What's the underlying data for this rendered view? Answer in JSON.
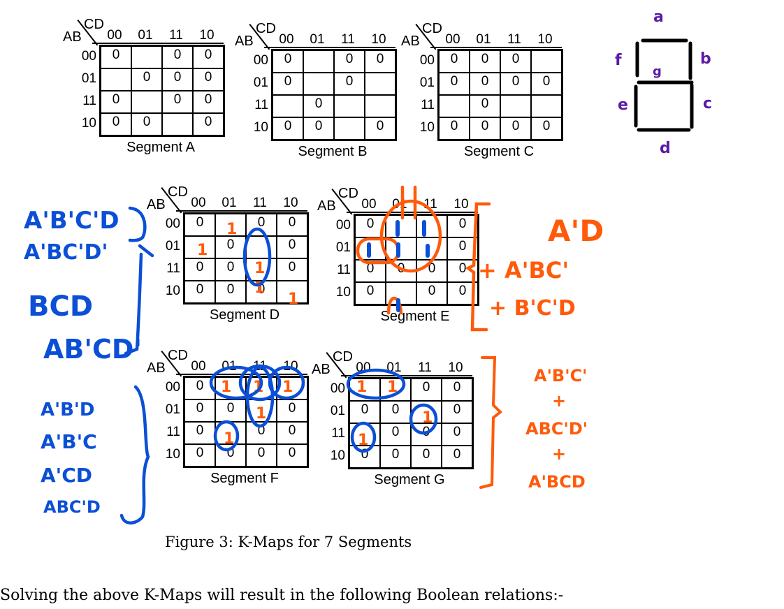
{
  "kmap_labels": {
    "cd": "CD",
    "ab": "AB"
  },
  "kmaps": [
    {
      "segment": "Segment A",
      "cols": [
        "00",
        "01",
        "11",
        "10"
      ],
      "rows": [
        "00",
        "01",
        "11",
        "10"
      ],
      "cells": [
        [
          "0",
          "",
          "0",
          "0"
        ],
        [
          "",
          "0",
          "0",
          "0"
        ],
        [
          "0",
          "",
          "0",
          "0"
        ],
        [
          "0",
          "0",
          "",
          "0"
        ]
      ]
    },
    {
      "segment": "Segment B",
      "cols": [
        "00",
        "01",
        "11",
        "10"
      ],
      "rows": [
        "00",
        "01",
        "11",
        "10"
      ],
      "cells": [
        [
          "0",
          "",
          "0",
          "0"
        ],
        [
          "0",
          "",
          "0",
          ""
        ],
        [
          "",
          "0",
          "",
          ""
        ],
        [
          "0",
          "0",
          "",
          "0"
        ]
      ]
    },
    {
      "segment": "Segment C",
      "cols": [
        "00",
        "01",
        "11",
        "10"
      ],
      "rows": [
        "00",
        "01",
        "11",
        "10"
      ],
      "cells": [
        [
          "0",
          "0",
          "0",
          ""
        ],
        [
          "0",
          "0",
          "0",
          "0"
        ],
        [
          "",
          "0",
          "",
          ""
        ],
        [
          "0",
          "0",
          "0",
          "0"
        ]
      ]
    },
    {
      "segment": "Segment D",
      "cols": [
        "00",
        "01",
        "11",
        "10"
      ],
      "rows": [
        "00",
        "01",
        "11",
        "10"
      ],
      "cells": [
        [
          "0",
          "",
          "0",
          "0"
        ],
        [
          "",
          "0",
          "",
          "0"
        ],
        [
          "0",
          "0",
          "",
          "0"
        ],
        [
          "0",
          "0",
          "0",
          ""
        ]
      ]
    },
    {
      "segment": "Segment E",
      "cols": [
        "00",
        "01",
        "11",
        "10"
      ],
      "rows": [
        "00",
        "01",
        "11",
        "10"
      ],
      "cells": [
        [
          "0",
          "",
          "",
          "0"
        ],
        [
          "",
          "",
          "",
          "0"
        ],
        [
          "0",
          "0",
          "0",
          "0"
        ],
        [
          "0",
          "",
          "0",
          "0"
        ]
      ]
    },
    {
      "segment": "Segment F",
      "cols": [
        "00",
        "01",
        "11",
        "10"
      ],
      "rows": [
        "00",
        "01",
        "11",
        "10"
      ],
      "cells": [
        [
          "0",
          "",
          "",
          ""
        ],
        [
          "0",
          "0",
          "",
          "0"
        ],
        [
          "0",
          "",
          "0",
          "0"
        ],
        [
          "0",
          "0",
          "0",
          "0"
        ]
      ]
    },
    {
      "segment": "Segment G",
      "cols": [
        "00",
        "01",
        "11",
        "10"
      ],
      "rows": [
        "00",
        "01",
        "11",
        "10"
      ],
      "cells": [
        [
          "",
          "",
          "0",
          "0"
        ],
        [
          "0",
          "0",
          "",
          "0"
        ],
        [
          "",
          "0",
          "0",
          "0"
        ],
        [
          "0",
          "0",
          "0",
          "0"
        ]
      ]
    }
  ],
  "caption": "Figure 3: K-Maps for 7 Segments",
  "body_text": "Solving the above K-Maps will result in the following Boolean relations:-",
  "seven_segment": {
    "a": "a",
    "b": "b",
    "c": "c",
    "d": "d",
    "e": "e",
    "f": "f",
    "g": "g"
  },
  "annotations": {
    "segment_d_terms": [
      "A'B'C'D",
      "A'BC'D'",
      "BCD",
      "AB'CD'"
    ],
    "segment_e_terms": [
      "A'D",
      "+ A'BC'",
      "+ B'C'D"
    ],
    "segment_f_terms": [
      "A'B'D",
      "A'B'C",
      "A'CD",
      "ABC'D"
    ],
    "segment_g_terms": [
      "A'B'C'",
      "+",
      "ABC'D'",
      "+",
      "A'BCD"
    ],
    "handwritten_one": "1"
  },
  "colors": {
    "blue": "#0b4fd6",
    "orange": "#ff5a0a",
    "purple": "#5b1aa8"
  }
}
